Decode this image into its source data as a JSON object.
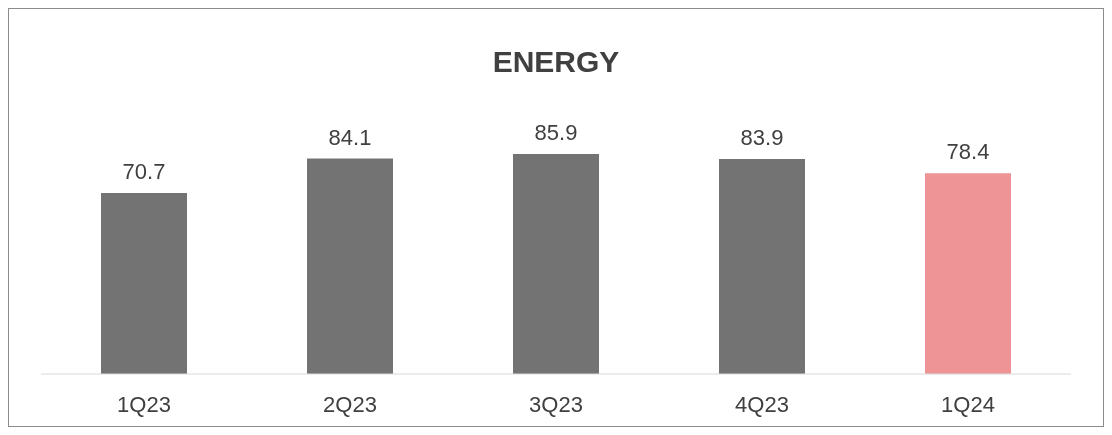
{
  "chart_data": {
    "type": "bar",
    "title": "ENERGY",
    "categories": [
      "1Q23",
      "2Q23",
      "3Q23",
      "4Q23",
      "1Q24"
    ],
    "values": [
      70.7,
      84.1,
      85.9,
      83.9,
      78.4
    ],
    "colors": [
      "#737373",
      "#737373",
      "#737373",
      "#737373",
      "#ee9497"
    ],
    "data_labels": true,
    "grid": false
  }
}
